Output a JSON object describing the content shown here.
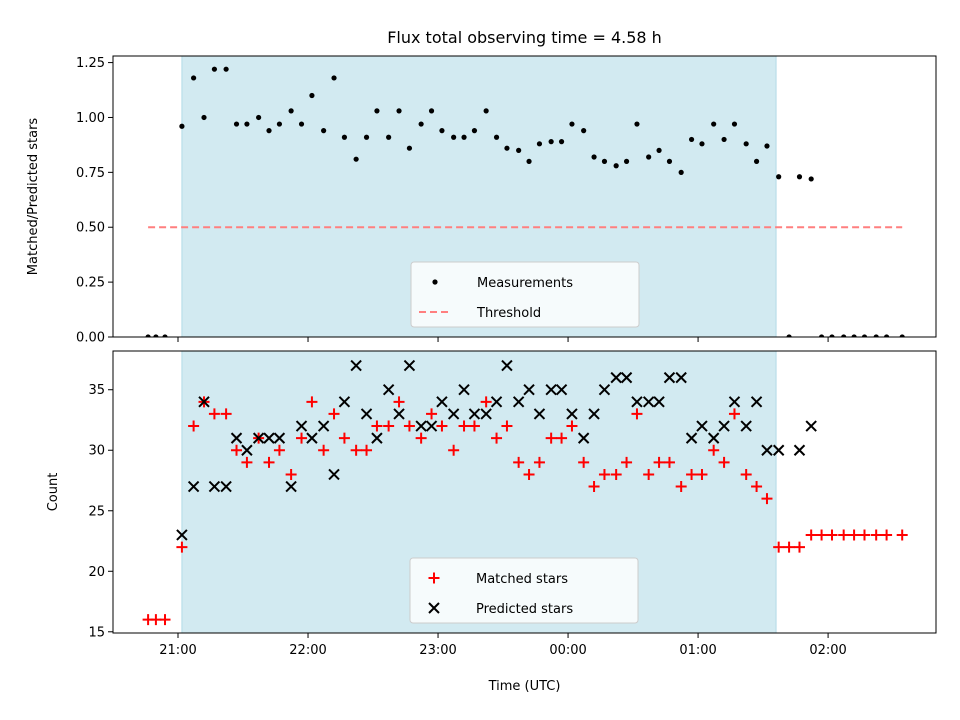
{
  "figure": {
    "title": "Flux total observing time = 4.58 h",
    "xlabel": "Time (UTC)",
    "x_tick_labels": [
      "21:00",
      "22:00",
      "23:00",
      "00:00",
      "01:00",
      "02:00"
    ],
    "x_tick_hours": [
      21,
      22,
      23,
      24,
      25,
      26
    ],
    "xlim_hours": [
      20.5,
      26.83
    ],
    "shaded_span_hours": [
      21.03,
      25.6
    ],
    "colors": {
      "span": "#add8e6",
      "threshold": "#ff7f7f",
      "matched": "#ff0000",
      "predicted": "#000000",
      "measurements": "#000000"
    }
  },
  "chart_data": [
    {
      "type": "scatter",
      "ylabel": "Matched/Predicted stars",
      "ylim": [
        0,
        1.28
      ],
      "y_ticks": [
        0.0,
        0.25,
        0.5,
        0.75,
        1.0,
        1.25
      ],
      "y_tick_labels": [
        "0.00",
        "0.25",
        "0.50",
        "0.75",
        "1.00",
        "1.25"
      ],
      "threshold": {
        "name": "Threshold",
        "value": 0.5,
        "x_range_hours": [
          20.77,
          26.57
        ]
      },
      "legend": {
        "position": "lower center",
        "entries": [
          "Measurements",
          "Threshold"
        ]
      },
      "series": [
        {
          "name": "Measurements",
          "x_hours": [
            20.77,
            20.83,
            20.9,
            21.03,
            21.12,
            21.2,
            21.28,
            21.37,
            21.45,
            21.53,
            21.62,
            21.7,
            21.78,
            21.87,
            21.95,
            22.03,
            22.12,
            22.2,
            22.28,
            22.37,
            22.45,
            22.53,
            22.62,
            22.7,
            22.78,
            22.87,
            22.95,
            23.03,
            23.12,
            23.2,
            23.28,
            23.37,
            23.45,
            23.53,
            23.62,
            23.7,
            23.78,
            23.87,
            23.95,
            24.03,
            24.12,
            24.2,
            24.28,
            24.37,
            24.45,
            24.53,
            24.62,
            24.7,
            24.78,
            24.87,
            24.95,
            25.03,
            25.12,
            25.2,
            25.28,
            25.37,
            25.45,
            25.53,
            25.62,
            25.7,
            25.78,
            25.87,
            25.95,
            26.03,
            26.12,
            26.2,
            26.28,
            26.37,
            26.45,
            26.57
          ],
          "y": [
            0.0,
            0.0,
            0.0,
            0.96,
            1.18,
            1.0,
            1.22,
            1.22,
            0.97,
            0.97,
            1.0,
            0.94,
            0.97,
            1.03,
            0.97,
            1.1,
            0.94,
            1.18,
            0.91,
            0.81,
            0.91,
            1.03,
            0.91,
            1.03,
            0.86,
            0.97,
            1.03,
            0.94,
            0.91,
            0.91,
            0.94,
            1.03,
            0.91,
            0.86,
            0.85,
            0.8,
            0.88,
            0.89,
            0.89,
            0.97,
            0.94,
            0.82,
            0.8,
            0.78,
            0.8,
            0.97,
            0.82,
            0.85,
            0.8,
            0.75,
            0.9,
            0.88,
            0.97,
            0.9,
            0.97,
            0.88,
            0.8,
            0.87,
            0.73,
            0.0,
            0.73,
            0.72,
            0.0,
            0.0,
            0.0,
            0.0,
            0.0,
            0.0,
            0.0,
            0.0
          ]
        }
      ]
    },
    {
      "type": "scatter",
      "ylabel": "Count",
      "ylim": [
        14.9,
        38.2
      ],
      "y_ticks": [
        15,
        20,
        25,
        30,
        35
      ],
      "y_tick_labels": [
        "15",
        "20",
        "25",
        "30",
        "35"
      ],
      "legend": {
        "position": "lower center",
        "entries": [
          "Matched stars",
          "Predicted stars"
        ]
      },
      "series": [
        {
          "name": "Matched stars",
          "marker": "plus",
          "x_hours": [
            20.77,
            20.83,
            20.9,
            21.03,
            21.12,
            21.2,
            21.28,
            21.37,
            21.45,
            21.53,
            21.62,
            21.7,
            21.78,
            21.87,
            21.95,
            22.03,
            22.12,
            22.2,
            22.28,
            22.37,
            22.45,
            22.53,
            22.62,
            22.7,
            22.78,
            22.87,
            22.95,
            23.03,
            23.12,
            23.2,
            23.28,
            23.37,
            23.45,
            23.53,
            23.62,
            23.7,
            23.78,
            23.87,
            23.95,
            24.03,
            24.12,
            24.2,
            24.28,
            24.37,
            24.45,
            24.53,
            24.62,
            24.7,
            24.78,
            24.87,
            24.95,
            25.03,
            25.12,
            25.2,
            25.28,
            25.37,
            25.45,
            25.53,
            25.62,
            25.7,
            25.78,
            25.87,
            25.95,
            26.03,
            26.12,
            26.2,
            26.28,
            26.37,
            26.45,
            26.57
          ],
          "y": [
            16,
            16,
            16,
            22,
            32,
            34,
            33,
            33,
            30,
            29,
            31,
            29,
            30,
            28,
            31,
            34,
            30,
            33,
            31,
            30,
            30,
            32,
            32,
            34,
            32,
            31,
            33,
            32,
            30,
            32,
            32,
            34,
            31,
            32,
            29,
            28,
            29,
            31,
            31,
            32,
            29,
            27,
            28,
            28,
            29,
            33,
            28,
            29,
            29,
            27,
            28,
            28,
            30,
            29,
            33,
            28,
            27,
            26,
            22,
            22,
            22,
            23,
            23,
            23,
            23,
            23,
            23,
            23,
            23,
            23
          ]
        },
        {
          "name": "Predicted stars",
          "marker": "x",
          "x_hours": [
            21.03,
            21.12,
            21.2,
            21.28,
            21.37,
            21.45,
            21.53,
            21.62,
            21.7,
            21.78,
            21.87,
            21.95,
            22.03,
            22.12,
            22.2,
            22.28,
            22.37,
            22.45,
            22.53,
            22.62,
            22.7,
            22.78,
            22.87,
            22.95,
            23.03,
            23.12,
            23.2,
            23.28,
            23.37,
            23.45,
            23.53,
            23.62,
            23.7,
            23.78,
            23.87,
            23.95,
            24.03,
            24.12,
            24.2,
            24.28,
            24.37,
            24.45,
            24.53,
            24.62,
            24.7,
            24.78,
            24.87,
            24.95,
            25.03,
            25.12,
            25.2,
            25.28,
            25.37,
            25.45,
            25.53,
            25.62,
            25.78,
            25.87
          ],
          "y": [
            23,
            27,
            34,
            27,
            27,
            31,
            30,
            31,
            31,
            31,
            27,
            32,
            31,
            32,
            28,
            34,
            37,
            33,
            31,
            35,
            33,
            37,
            32,
            32,
            34,
            33,
            35,
            33,
            33,
            34,
            37,
            34,
            35,
            33,
            35,
            35,
            33,
            31,
            33,
            35,
            36,
            36,
            34,
            34,
            34,
            36,
            36,
            31,
            32,
            31,
            32,
            34,
            32,
            34,
            30,
            30,
            30,
            32
          ]
        }
      ]
    }
  ]
}
